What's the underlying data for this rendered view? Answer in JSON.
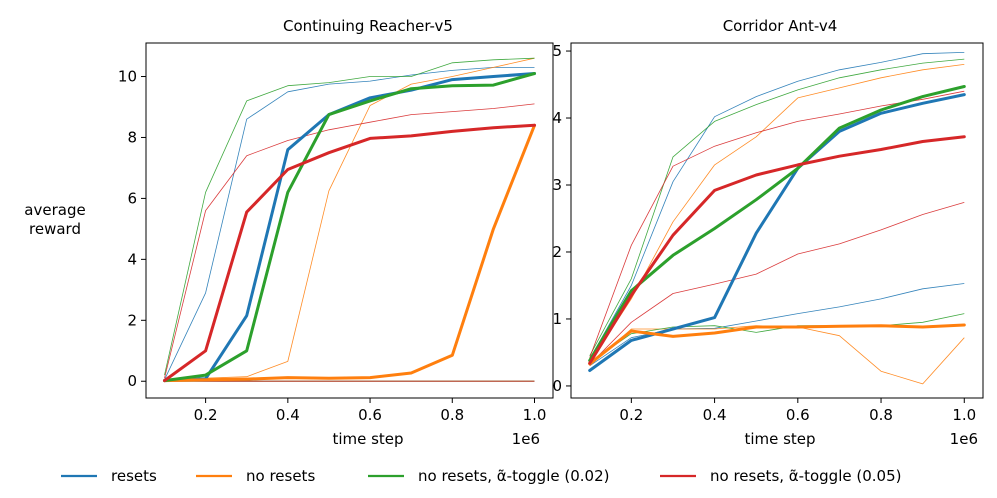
{
  "ylabel_lines": [
    "average",
    "reward"
  ],
  "legend": [
    {
      "label": "resets",
      "color": "#1f77b4"
    },
    {
      "label": "no resets",
      "color": "#ff7f0e"
    },
    {
      "label": "no resets, α̃-toggle (0.02)",
      "color": "#2ca02c"
    },
    {
      "label": "no resets, α̃-toggle (0.05)",
      "color": "#d62728"
    }
  ],
  "chart_data": [
    {
      "type": "line",
      "title": "Continuing Reacher-v5",
      "xlabel": "time step",
      "x_scale_label": "1e6",
      "ylabel": "average reward",
      "xlim": [
        0.055,
        1.045
      ],
      "ylim": [
        -0.55,
        11.1
      ],
      "xticks": [
        0.2,
        0.4,
        0.6,
        0.8,
        1.0
      ],
      "xtick_labels": [
        "0.2",
        "0.4",
        "0.6",
        "0.8",
        "1.0"
      ],
      "yticks": [
        0,
        2,
        4,
        6,
        8,
        10
      ],
      "ytick_labels": [
        "0",
        "2",
        "4",
        "6",
        "8",
        "10"
      ],
      "x": [
        0.1,
        0.2,
        0.3,
        0.4,
        0.5,
        0.6,
        0.7,
        0.8,
        0.9,
        1.0
      ],
      "series": [
        {
          "name": "resets",
          "color": "#1f77b4",
          "values": [
            0.02,
            0.08,
            2.15,
            7.6,
            8.75,
            9.3,
            9.55,
            9.9,
            10.0,
            10.1
          ]
        },
        {
          "name": "no resets",
          "color": "#ff7f0e",
          "values": [
            0.02,
            0.05,
            0.07,
            0.12,
            0.1,
            0.12,
            0.27,
            0.85,
            5.0,
            8.4
          ]
        },
        {
          "name": "no resets, α̃-toggle (0.02)",
          "color": "#2ca02c",
          "values": [
            0.02,
            0.2,
            1.0,
            6.2,
            8.75,
            9.2,
            9.6,
            9.7,
            9.72,
            10.1
          ]
        },
        {
          "name": "no resets, α̃-toggle (0.05)",
          "color": "#d62728",
          "values": [
            0.02,
            1.0,
            5.55,
            6.95,
            7.5,
            7.97,
            8.05,
            8.2,
            8.32,
            8.4
          ]
        }
      ],
      "thin_series": [
        {
          "name": "resets-upper",
          "color": "#1f77b4",
          "values": [
            0.05,
            2.9,
            8.6,
            9.5,
            9.75,
            9.85,
            10.05,
            10.2,
            10.3,
            10.3
          ]
        },
        {
          "name": "resets-lower",
          "color": "#1f77b4",
          "values": [
            0.0,
            0.0,
            0.0,
            0.0,
            0.0,
            0.0,
            0.0,
            0.0,
            0.0,
            0.0
          ]
        },
        {
          "name": "no-resets-upper",
          "color": "#ff7f0e",
          "values": [
            0.05,
            0.1,
            0.15,
            0.65,
            6.25,
            9.05,
            9.75,
            10.0,
            10.3,
            10.6
          ]
        },
        {
          "name": "no-resets-lower",
          "color": "#ff7f0e",
          "values": [
            0.0,
            0.0,
            0.0,
            0.0,
            0.0,
            0.0,
            0.0,
            0.0,
            0.0,
            0.0
          ]
        },
        {
          "name": "toggle002-upper",
          "color": "#2ca02c",
          "values": [
            0.2,
            6.2,
            9.2,
            9.7,
            9.8,
            10.0,
            10.0,
            10.45,
            10.55,
            10.6
          ]
        },
        {
          "name": "toggle002-lower",
          "color": "#2ca02c",
          "values": [
            0.0,
            0.0,
            0.0,
            0.0,
            0.0,
            0.0,
            0.0,
            0.0,
            0.0,
            0.0
          ]
        },
        {
          "name": "toggle005-upper",
          "color": "#d62728",
          "values": [
            0.1,
            5.6,
            7.4,
            7.9,
            8.25,
            8.5,
            8.75,
            8.85,
            8.95,
            9.1
          ]
        },
        {
          "name": "toggle005-lower",
          "color": "#d62728",
          "values": [
            0.0,
            0.0,
            0.0,
            0.0,
            0.0,
            0.0,
            0.0,
            0.0,
            0.0,
            0.0
          ]
        }
      ]
    },
    {
      "type": "line",
      "title": "Corridor Ant-v4",
      "xlabel": "time step",
      "x_scale_label": "1e6",
      "ylabel": "average reward",
      "xlim": [
        0.055,
        1.045
      ],
      "ylim": [
        -0.18,
        5.12
      ],
      "xticks": [
        0.2,
        0.4,
        0.6,
        0.8,
        1.0
      ],
      "xtick_labels": [
        "0.2",
        "0.4",
        "0.6",
        "0.8",
        "1.0"
      ],
      "yticks": [
        0,
        1,
        2,
        3,
        4,
        5
      ],
      "ytick_labels": [
        "0",
        "1",
        "2",
        "3",
        "4",
        "5"
      ],
      "x": [
        0.1,
        0.2,
        0.3,
        0.4,
        0.5,
        0.6,
        0.7,
        0.8,
        0.9,
        1.0
      ],
      "series": [
        {
          "name": "resets",
          "color": "#1f77b4",
          "values": [
            0.23,
            0.68,
            0.85,
            1.02,
            2.28,
            3.25,
            3.8,
            4.07,
            4.22,
            4.35
          ]
        },
        {
          "name": "no resets",
          "color": "#ff7f0e",
          "values": [
            0.33,
            0.82,
            0.74,
            0.79,
            0.88,
            0.88,
            0.89,
            0.9,
            0.88,
            0.91
          ]
        },
        {
          "name": "no resets, α̃-toggle (0.02)",
          "color": "#2ca02c",
          "values": [
            0.38,
            1.42,
            1.95,
            2.35,
            2.78,
            3.25,
            3.85,
            4.12,
            4.32,
            4.47
          ]
        },
        {
          "name": "no resets, α̃-toggle (0.05)",
          "color": "#d62728",
          "values": [
            0.34,
            1.35,
            2.25,
            2.92,
            3.15,
            3.3,
            3.43,
            3.53,
            3.65,
            3.72
          ]
        }
      ],
      "thin_series": [
        {
          "name": "resets-upper",
          "color": "#1f77b4",
          "values": [
            0.4,
            1.5,
            3.05,
            4.02,
            4.32,
            4.55,
            4.72,
            4.83,
            4.96,
            4.98
          ]
        },
        {
          "name": "resets-lower",
          "color": "#1f77b4",
          "values": [
            0.3,
            0.72,
            0.85,
            0.86,
            0.97,
            1.08,
            1.18,
            1.3,
            1.45,
            1.53
          ]
        },
        {
          "name": "no-resets-upper",
          "color": "#ff7f0e",
          "values": [
            0.35,
            1.3,
            2.45,
            3.3,
            3.72,
            4.3,
            4.45,
            4.6,
            4.72,
            4.8
          ]
        },
        {
          "name": "no-resets-lower",
          "color": "#ff7f0e",
          "values": [
            0.3,
            0.85,
            0.85,
            0.85,
            0.9,
            0.88,
            0.75,
            0.22,
            0.03,
            0.72
          ]
        },
        {
          "name": "toggle002-upper",
          "color": "#2ca02c",
          "values": [
            0.45,
            1.6,
            3.42,
            3.95,
            4.2,
            4.42,
            4.6,
            4.72,
            4.82,
            4.88
          ]
        },
        {
          "name": "toggle002-lower",
          "color": "#2ca02c",
          "values": [
            0.35,
            0.78,
            0.88,
            0.9,
            0.8,
            0.9,
            0.9,
            0.9,
            0.95,
            1.08
          ]
        },
        {
          "name": "toggle005-upper",
          "color": "#d62728",
          "values": [
            0.42,
            2.1,
            3.28,
            3.58,
            3.78,
            3.95,
            4.06,
            4.18,
            4.28,
            4.4
          ]
        },
        {
          "name": "toggle005-lower",
          "color": "#d62728",
          "values": [
            0.32,
            0.95,
            1.38,
            1.52,
            1.67,
            1.97,
            2.12,
            2.33,
            2.56,
            2.74
          ]
        }
      ]
    }
  ]
}
